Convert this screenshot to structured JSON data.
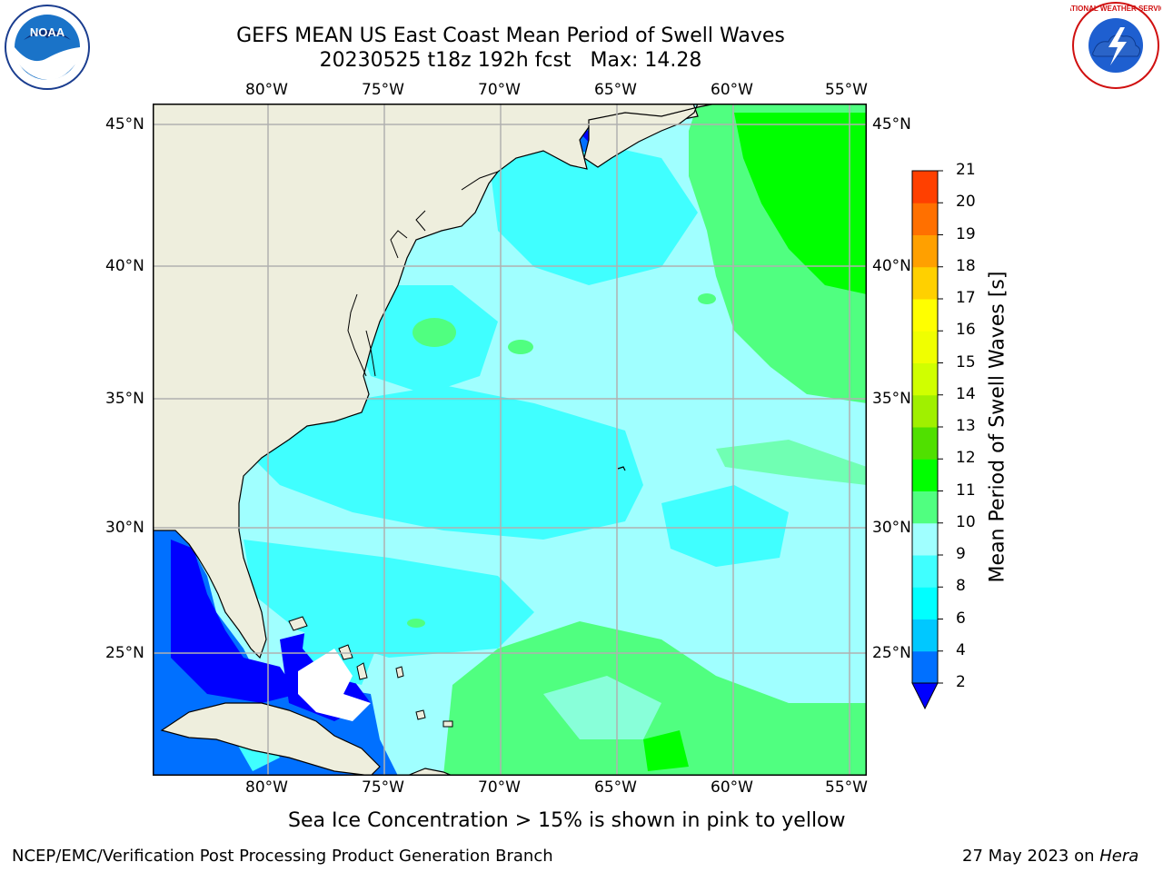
{
  "title": {
    "line1": "GEFS MEAN US East Coast Mean Period of Swell Waves",
    "line2": "20230525 t18z 192h fcst   Max: 14.28"
  },
  "logos": {
    "left": "NOAA",
    "right": "NATIONAL WEATHER SERVICE"
  },
  "axes": {
    "lon_labels": [
      "80°W",
      "75°W",
      "70°W",
      "65°W",
      "60°W",
      "55°W"
    ],
    "lat_labels": [
      "45°N",
      "40°N",
      "35°N",
      "30°N",
      "25°N"
    ]
  },
  "colorbar": {
    "label": "Mean Period of Swell Waves [s]",
    "ticks": [
      "2",
      "4",
      "6",
      "8",
      "9",
      "10",
      "11",
      "12",
      "13",
      "14",
      "15",
      "16",
      "17",
      "18",
      "19",
      "20",
      "21"
    ],
    "colors": [
      "#0070ff",
      "#00c8ff",
      "#00ffff",
      "#40ffff",
      "#a0ffff",
      "#50ff80",
      "#00ff00",
      "#50e000",
      "#a0f000",
      "#d0ff00",
      "#f0ff00",
      "#ffff00",
      "#ffd000",
      "#ffa000",
      "#ff7000",
      "#ff4000",
      "#ff0000"
    ],
    "under_color": "#0000ff"
  },
  "footer": {
    "note": "Sea Ice Concentration > 15% is shown in pink to yellow",
    "left": "NCEP/EMC/Verification Post Processing Product Generation Branch",
    "right_prefix": "27 May 2023 on ",
    "right_machine": "Hera"
  },
  "colors": {
    "land": "#eeeedd",
    "ocean_main": "#a0ffff",
    "ocean_cyan": "#40ffff",
    "ocean_green": "#50ff80",
    "ocean_darkgreen": "#00ff00",
    "ocean_blue": "#0000ff",
    "ocean_midblue": "#0070ff",
    "grid": "#b0b0b0"
  }
}
